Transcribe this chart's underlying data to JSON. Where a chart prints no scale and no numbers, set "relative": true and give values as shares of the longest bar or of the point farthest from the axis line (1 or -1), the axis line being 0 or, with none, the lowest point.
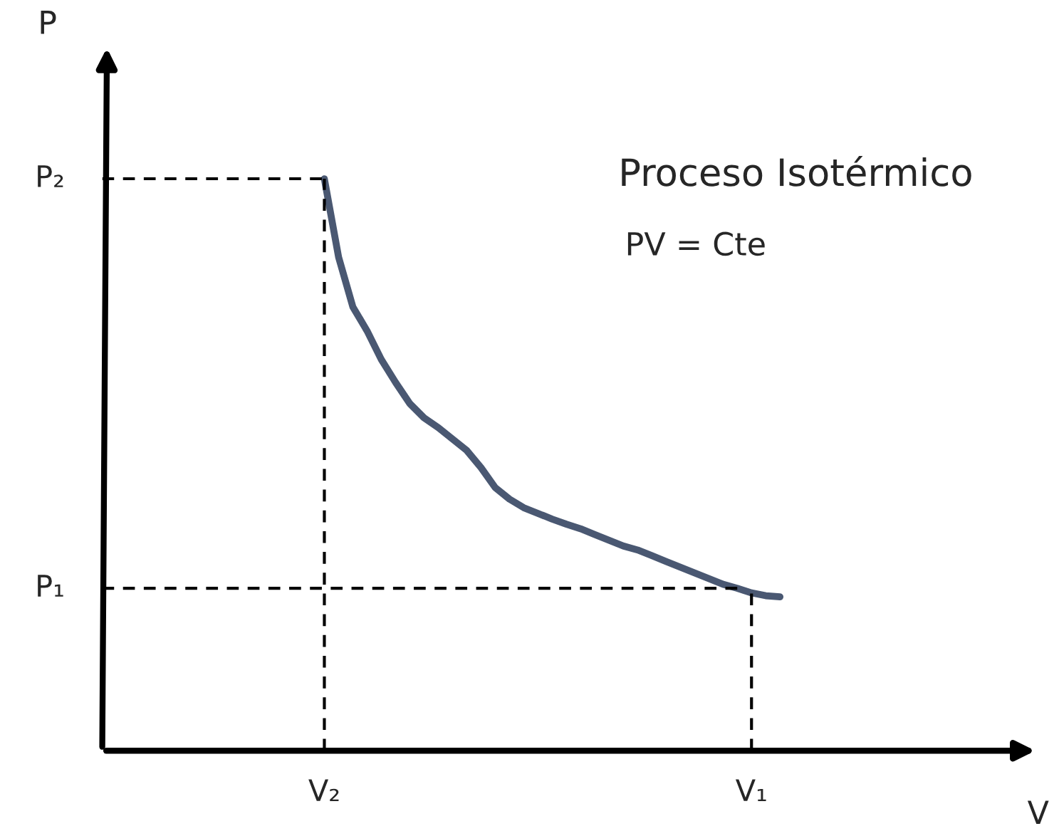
{
  "chart_data": {
    "type": "line",
    "relative": true,
    "categories": [
      "V₂",
      null,
      null,
      null,
      null,
      null,
      null,
      null,
      null,
      null,
      null,
      null,
      null,
      null,
      null,
      null,
      null,
      null,
      null,
      null,
      null,
      null,
      null,
      null,
      null,
      null,
      null,
      null,
      null,
      null,
      "V₁",
      null,
      null
    ],
    "series": [
      {
        "color": "#4a5872",
        "values": [
          1.0,
          0.863,
          0.776,
          0.734,
          0.684,
          0.644,
          0.607,
          0.582,
          0.565,
          0.545,
          0.525,
          0.495,
          0.46,
          0.44,
          0.425,
          0.415,
          0.405,
          0.396,
          0.388,
          0.378,
          0.368,
          0.358,
          0.351,
          0.341,
          0.331,
          0.321,
          0.311,
          0.301,
          0.291,
          0.284,
          0.276,
          0.271,
          0.269
        ]
      }
    ],
    "ref_lines": [
      {
        "axis": "y",
        "value": 1.0,
        "label": "P₂",
        "line_style": "dashed",
        "color": "#000000"
      },
      {
        "axis": "y",
        "value": 0.284,
        "label": "P₁",
        "line_style": "dashed",
        "color": "#000000"
      },
      {
        "axis": "x",
        "value": "V₂",
        "line_style": "dashed",
        "color": "#000000"
      },
      {
        "axis": "x",
        "value": "V₁",
        "line_style": "dashed",
        "color": "#000000"
      }
    ],
    "annotations": [
      "Proceso Isotérmico",
      "PV = Cte",
      "P",
      "V"
    ],
    "legend": false,
    "marker": "none",
    "line_style": "solid"
  }
}
